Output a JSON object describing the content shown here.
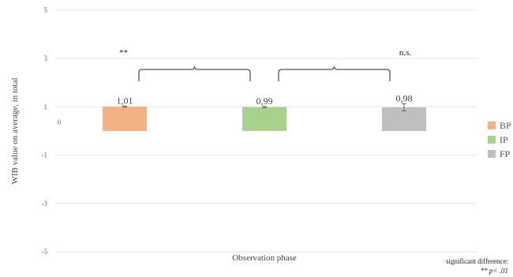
{
  "chart_data": {
    "type": "bar",
    "categories": [
      "BP",
      "IP",
      "FP"
    ],
    "values": [
      1.01,
      0.99,
      0.98
    ],
    "value_labels": [
      "1,01",
      "0,99",
      "0,98"
    ],
    "error": [
      0.02,
      0.03,
      0.15
    ],
    "colors": [
      "#F4B183",
      "#A9D18E",
      "#BFBFBF"
    ],
    "xlabel": "Observation phase",
    "ylabel": "WIB value on average, in total",
    "ylim": [
      -5,
      5
    ],
    "yticks": [
      5,
      3,
      1,
      -1,
      -3,
      -5
    ],
    "zero_label": "0",
    "grid": true,
    "legend_position": "right",
    "legend": [
      "BP",
      "IP",
      "FP"
    ],
    "significance": [
      {
        "from": "BP",
        "to": "IP",
        "label": "**"
      },
      {
        "from": "IP",
        "to": "FP",
        "label": "n.s."
      }
    ],
    "note_line1": "significant difference:",
    "note_line2": "** p< .01"
  }
}
